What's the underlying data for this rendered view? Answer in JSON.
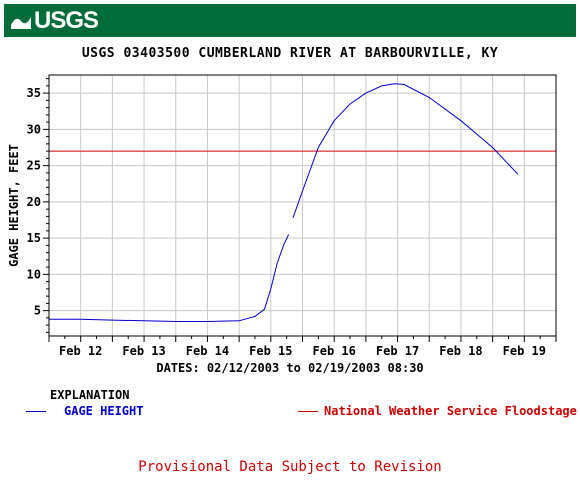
{
  "header": {
    "logo_text": "USGS",
    "banner_color": "#006c3a"
  },
  "chart_data": {
    "type": "line",
    "title": "USGS 03403500 CUMBERLAND RIVER AT BARBOURVILLE, KY",
    "ylabel": "GAGE HEIGHT, FEET",
    "xlabel": "DATES: 02/12/2003 to 02/19/2003 08:30",
    "ylim": [
      1.5,
      37.5
    ],
    "yticks": [
      5,
      10,
      15,
      20,
      25,
      30,
      35
    ],
    "xlim": [
      11.5,
      19.5
    ],
    "xticks": [
      {
        "label": "Feb 12",
        "x": 12
      },
      {
        "label": "Feb 13",
        "x": 13
      },
      {
        "label": "Feb 14",
        "x": 14
      },
      {
        "label": "Feb 15",
        "x": 15
      },
      {
        "label": "Feb 16",
        "x": 16
      },
      {
        "label": "Feb 17",
        "x": 17
      },
      {
        "label": "Feb 18",
        "x": 18
      },
      {
        "label": "Feb 19",
        "x": 19
      }
    ],
    "grid": true,
    "series": [
      {
        "name": "GAGE HEIGHT",
        "color": "#0000cc",
        "segments": [
          [
            [
              11.5,
              3.8
            ],
            [
              12.0,
              3.8
            ],
            [
              12.5,
              3.7
            ],
            [
              13.0,
              3.6
            ],
            [
              13.5,
              3.5
            ],
            [
              14.0,
              3.5
            ],
            [
              14.5,
              3.6
            ],
            [
              14.75,
              4.2
            ],
            [
              14.9,
              5.2
            ],
            [
              15.0,
              8.0
            ],
            [
              15.1,
              11.5
            ],
            [
              15.2,
              14.0
            ],
            [
              15.28,
              15.5
            ]
          ],
          [
            [
              15.35,
              17.8
            ],
            [
              15.5,
              21.5
            ],
            [
              15.75,
              27.5
            ],
            [
              16.0,
              31.2
            ],
            [
              16.25,
              33.5
            ],
            [
              16.5,
              35.0
            ],
            [
              16.75,
              36.0
            ],
            [
              16.95,
              36.3
            ],
            [
              17.1,
              36.2
            ],
            [
              17.5,
              34.4
            ],
            [
              18.0,
              31.2
            ],
            [
              18.5,
              27.5
            ],
            [
              18.9,
              23.8
            ]
          ]
        ]
      },
      {
        "name": "National Weather Service Floodstage",
        "color": "#cc0000",
        "y": 27.0
      }
    ]
  },
  "legend": {
    "heading": "EXPLANATION",
    "gage": "GAGE HEIGHT",
    "flood": "National Weather Service Floodstage"
  },
  "footer": {
    "notice": "Provisional Data Subject to Revision"
  }
}
